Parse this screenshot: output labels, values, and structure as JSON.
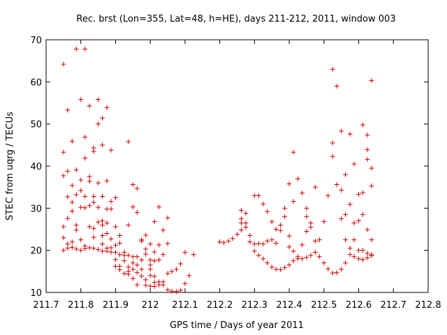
{
  "chart_data": {
    "type": "scatter",
    "title": "Rec. brst (Lon=355, Lat=48, h=HE), days 211-212, 2011, window 003",
    "xlabel": "GPS time / Days of year 2011",
    "ylabel": "STEC from uqrg / TECUs",
    "xlim": [
      211.7,
      212.8
    ],
    "ylim": [
      10,
      70
    ],
    "xticks": [
      211.7,
      211.8,
      211.9,
      212.0,
      212.1,
      212.2,
      212.3,
      212.4,
      212.5,
      212.6,
      212.7,
      212.8
    ],
    "xtick_labels": [
      "211.7",
      "211.8",
      "211.9",
      "212",
      "212.1",
      "212.2",
      "212.3",
      "212.4",
      "212.5",
      "212.6",
      "212.7",
      "212.8"
    ],
    "yticks": [
      10,
      20,
      30,
      40,
      50,
      60,
      70
    ],
    "ytick_labels": [
      "10",
      "20",
      "30",
      "40",
      "50",
      "60",
      "70"
    ],
    "grid": false,
    "marker": "plus",
    "color": "#cc0000",
    "points": [
      [
        211.75,
        64.2
      ],
      [
        211.75,
        43.3
      ],
      [
        211.75,
        37.7
      ],
      [
        211.75,
        25.6
      ],
      [
        211.75,
        23.0
      ],
      [
        211.75,
        20.0
      ],
      [
        211.762,
        53.3
      ],
      [
        211.762,
        38.8
      ],
      [
        211.762,
        32.7
      ],
      [
        211.762,
        27.6
      ],
      [
        211.762,
        21.5
      ],
      [
        211.762,
        20.5
      ],
      [
        211.775,
        45.9
      ],
      [
        211.775,
        35.4
      ],
      [
        211.775,
        31.4
      ],
      [
        211.775,
        29.3
      ],
      [
        211.775,
        22.0
      ],
      [
        211.775,
        20.7
      ],
      [
        211.787,
        67.8
      ],
      [
        211.787,
        39.1
      ],
      [
        211.787,
        33.2
      ],
      [
        211.787,
        26.0
      ],
      [
        211.787,
        24.8
      ],
      [
        211.787,
        20.3
      ],
      [
        211.8,
        55.8
      ],
      [
        211.8,
        36.7
      ],
      [
        211.8,
        34.2
      ],
      [
        211.8,
        30.2
      ],
      [
        211.8,
        22.5
      ],
      [
        211.8,
        20.0
      ],
      [
        211.812,
        67.8
      ],
      [
        211.812,
        46.9
      ],
      [
        211.812,
        41.9
      ],
      [
        211.812,
        32.8
      ],
      [
        211.812,
        30.1
      ],
      [
        211.812,
        21.0
      ],
      [
        211.812,
        20.4
      ],
      [
        211.825,
        54.3
      ],
      [
        211.825,
        37.5
      ],
      [
        211.825,
        36.4
      ],
      [
        211.825,
        30.6
      ],
      [
        211.825,
        25.6
      ],
      [
        211.825,
        20.6
      ],
      [
        211.837,
        44.3
      ],
      [
        211.837,
        43.5
      ],
      [
        211.837,
        32.8
      ],
      [
        211.837,
        31.4
      ],
      [
        211.837,
        25.2
      ],
      [
        211.837,
        23.1
      ],
      [
        211.837,
        20.5
      ],
      [
        211.85,
        55.8
      ],
      [
        211.85,
        50.0
      ],
      [
        211.85,
        36.0
      ],
      [
        211.85,
        30.2
      ],
      [
        211.85,
        26.7
      ],
      [
        211.85,
        20.2
      ],
      [
        211.862,
        51.4
      ],
      [
        211.862,
        45.0
      ],
      [
        211.862,
        32.8
      ],
      [
        211.862,
        27.0
      ],
      [
        211.862,
        26.0
      ],
      [
        211.862,
        23.5
      ],
      [
        211.862,
        21.5
      ],
      [
        211.862,
        19.8
      ],
      [
        211.875,
        53.9
      ],
      [
        211.875,
        36.5
      ],
      [
        211.875,
        29.8
      ],
      [
        211.875,
        26.5
      ],
      [
        211.875,
        24.0
      ],
      [
        211.875,
        20.5
      ],
      [
        211.875,
        19.8
      ],
      [
        211.887,
        43.8
      ],
      [
        211.887,
        31.6
      ],
      [
        211.887,
        29.8
      ],
      [
        211.887,
        22.7
      ],
      [
        211.887,
        20.6
      ],
      [
        211.887,
        19.6
      ],
      [
        211.9,
        32.5
      ],
      [
        211.9,
        25.6
      ],
      [
        211.9,
        21.2
      ],
      [
        211.9,
        19.5
      ],
      [
        211.9,
        17.8
      ],
      [
        211.9,
        16.2
      ],
      [
        211.912,
        23.5
      ],
      [
        211.912,
        21.7
      ],
      [
        211.912,
        19.0
      ],
      [
        211.912,
        16.2
      ],
      [
        211.912,
        15.4
      ],
      [
        211.925,
        19.5
      ],
      [
        211.925,
        18.8
      ],
      [
        211.925,
        17.5
      ],
      [
        211.925,
        14.5
      ],
      [
        211.937,
        45.8
      ],
      [
        211.937,
        26.0
      ],
      [
        211.937,
        18.8
      ],
      [
        211.937,
        16.0
      ],
      [
        211.937,
        15.0
      ],
      [
        211.937,
        14.3
      ],
      [
        211.95,
        35.6
      ],
      [
        211.95,
        30.3
      ],
      [
        211.95,
        18.5
      ],
      [
        211.95,
        17.0
      ],
      [
        211.95,
        15.5
      ],
      [
        211.95,
        13.3
      ],
      [
        211.962,
        34.7
      ],
      [
        211.962,
        29.0
      ],
      [
        211.962,
        18.5
      ],
      [
        211.962,
        16.5
      ],
      [
        211.962,
        14.7
      ],
      [
        211.962,
        11.8
      ],
      [
        211.975,
        22.5
      ],
      [
        211.975,
        22.2
      ],
      [
        211.975,
        17.7
      ],
      [
        211.975,
        15.5
      ],
      [
        211.975,
        13.9
      ],
      [
        211.987,
        23.6
      ],
      [
        211.987,
        20.3
      ],
      [
        211.987,
        19.1
      ],
      [
        211.987,
        13.0
      ],
      [
        211.987,
        11.7
      ],
      [
        212.0,
        21.5
      ],
      [
        212.0,
        17.7
      ],
      [
        212.0,
        16.5
      ],
      [
        212.0,
        15.5
      ],
      [
        212.0,
        14.0
      ],
      [
        212.0,
        11.5
      ],
      [
        212.012,
        26.8
      ],
      [
        212.012,
        19.6
      ],
      [
        212.012,
        17.5
      ],
      [
        212.012,
        13.8
      ],
      [
        212.012,
        12.4
      ],
      [
        212.012,
        11.4
      ],
      [
        212.025,
        30.3
      ],
      [
        212.025,
        21.3
      ],
      [
        212.025,
        17.7
      ],
      [
        212.025,
        12.5
      ],
      [
        212.025,
        11.8
      ],
      [
        212.037,
        24.8
      ],
      [
        212.037,
        19.0
      ],
      [
        212.037,
        12.5
      ],
      [
        212.037,
        11.8
      ],
      [
        212.05,
        27.7
      ],
      [
        212.05,
        21.6
      ],
      [
        212.05,
        14.5
      ],
      [
        212.05,
        10.6
      ],
      [
        212.062,
        15.0
      ],
      [
        212.062,
        10.3
      ],
      [
        212.075,
        15.5
      ],
      [
        212.075,
        10.2
      ],
      [
        212.087,
        16.8
      ],
      [
        212.087,
        10.5
      ],
      [
        212.1,
        19.5
      ],
      [
        212.1,
        12.1
      ],
      [
        212.112,
        14.0
      ],
      [
        212.125,
        19.0
      ],
      [
        212.2,
        22.0
      ],
      [
        212.212,
        21.8
      ],
      [
        212.225,
        22.2
      ],
      [
        212.237,
        22.8
      ],
      [
        212.25,
        23.8
      ],
      [
        212.262,
        29.5
      ],
      [
        212.262,
        27.5
      ],
      [
        212.262,
        26.5
      ],
      [
        212.262,
        24.8
      ],
      [
        212.275,
        28.8
      ],
      [
        212.275,
        26.5
      ],
      [
        212.275,
        25.5
      ],
      [
        212.287,
        23.5
      ],
      [
        212.287,
        22.0
      ],
      [
        212.3,
        33.0
      ],
      [
        212.3,
        21.5
      ],
      [
        212.3,
        19.8
      ],
      [
        212.312,
        33.0
      ],
      [
        212.312,
        21.6
      ],
      [
        212.312,
        18.8
      ],
      [
        212.325,
        31.0
      ],
      [
        212.325,
        21.5
      ],
      [
        212.325,
        18.0
      ],
      [
        212.337,
        29.2
      ],
      [
        212.337,
        22.2
      ],
      [
        212.337,
        17.0
      ],
      [
        212.35,
        26.8
      ],
      [
        212.35,
        22.5
      ],
      [
        212.35,
        16.0
      ],
      [
        212.362,
        25.0
      ],
      [
        212.362,
        21.7
      ],
      [
        212.362,
        15.5
      ],
      [
        212.375,
        26.0
      ],
      [
        212.375,
        24.7
      ],
      [
        212.375,
        15.4
      ],
      [
        212.387,
        30.0
      ],
      [
        212.387,
        28.0
      ],
      [
        212.387,
        15.9
      ],
      [
        212.4,
        35.8
      ],
      [
        212.4,
        23.4
      ],
      [
        212.4,
        20.8
      ],
      [
        212.4,
        16.5
      ],
      [
        212.412,
        43.3
      ],
      [
        212.412,
        31.6
      ],
      [
        212.412,
        19.8
      ],
      [
        212.412,
        17.5
      ],
      [
        212.425,
        37.0
      ],
      [
        212.425,
        18.5
      ],
      [
        212.425,
        18.0
      ],
      [
        212.437,
        33.6
      ],
      [
        212.437,
        21.3
      ],
      [
        212.437,
        18.0
      ],
      [
        212.45,
        30.0
      ],
      [
        212.45,
        28.0
      ],
      [
        212.45,
        24.5
      ],
      [
        212.45,
        18.3
      ],
      [
        212.462,
        26.5
      ],
      [
        212.462,
        25.5
      ],
      [
        212.462,
        18.8
      ],
      [
        212.475,
        35.0
      ],
      [
        212.475,
        22.2
      ],
      [
        212.475,
        19.5
      ],
      [
        212.487,
        22.5
      ],
      [
        212.487,
        18.5
      ],
      [
        212.5,
        26.8
      ],
      [
        212.5,
        17.0
      ],
      [
        212.512,
        33.0
      ],
      [
        212.512,
        15.6
      ],
      [
        212.525,
        63.0
      ],
      [
        212.525,
        45.5
      ],
      [
        212.525,
        42.3
      ],
      [
        212.525,
        14.6
      ],
      [
        212.537,
        59.0
      ],
      [
        212.537,
        35.6
      ],
      [
        212.537,
        14.7
      ],
      [
        212.55,
        48.3
      ],
      [
        212.55,
        34.3
      ],
      [
        212.55,
        27.5
      ],
      [
        212.55,
        15.5
      ],
      [
        212.562,
        38.0
      ],
      [
        212.562,
        28.5
      ],
      [
        212.562,
        22.5
      ],
      [
        212.562,
        17.0
      ],
      [
        212.575,
        47.6
      ],
      [
        212.575,
        30.9
      ],
      [
        212.575,
        20.5
      ],
      [
        212.575,
        19.0
      ],
      [
        212.587,
        40.5
      ],
      [
        212.587,
        26.5
      ],
      [
        212.587,
        22.5
      ],
      [
        212.587,
        18.5
      ],
      [
        212.6,
        33.3
      ],
      [
        212.6,
        27.0
      ],
      [
        212.6,
        20.0
      ],
      [
        212.6,
        18.0
      ],
      [
        212.612,
        49.8
      ],
      [
        212.612,
        33.7
      ],
      [
        212.612,
        28.5
      ],
      [
        212.612,
        20.0
      ],
      [
        212.612,
        17.8
      ],
      [
        212.625,
        47.4
      ],
      [
        212.625,
        43.9
      ],
      [
        212.625,
        41.6
      ],
      [
        212.625,
        24.9
      ],
      [
        212.625,
        19.3
      ],
      [
        212.625,
        18.2
      ],
      [
        212.637,
        60.3
      ],
      [
        212.637,
        39.5
      ],
      [
        212.637,
        35.3
      ],
      [
        212.637,
        22.5
      ],
      [
        212.637,
        19.0
      ],
      [
        212.637,
        18.7
      ]
    ]
  }
}
